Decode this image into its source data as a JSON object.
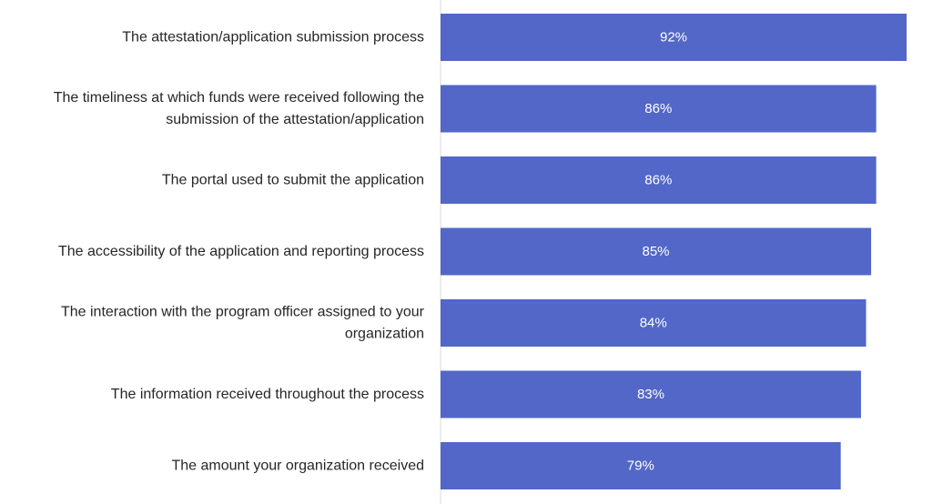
{
  "chart_data": {
    "type": "bar",
    "orientation": "horizontal",
    "title": "",
    "xlabel": "",
    "ylabel": "",
    "categories": [
      [
        "The attestation/application submission process"
      ],
      [
        "The timeliness at which funds were received following the",
        "submission of the attestation/application"
      ],
      [
        "The portal used to submit the application"
      ],
      [
        "The accessibility of the application and reporting process"
      ],
      [
        "The interaction with the program officer assigned to your",
        "organization"
      ],
      [
        "The information received throughout the process"
      ],
      [
        "The amount your organization received"
      ]
    ],
    "values": [
      92,
      86,
      86,
      85,
      84,
      83,
      79
    ],
    "value_labels": [
      "92%",
      "86%",
      "86%",
      "85%",
      "84%",
      "83%",
      "79%"
    ],
    "xlim": [
      0,
      92
    ],
    "grid": false,
    "legend": "none",
    "colors": {
      "bar": "#5267C8",
      "axis": "#D9D9D9",
      "text": "#262626",
      "value_text": "#FFFFFF"
    }
  }
}
